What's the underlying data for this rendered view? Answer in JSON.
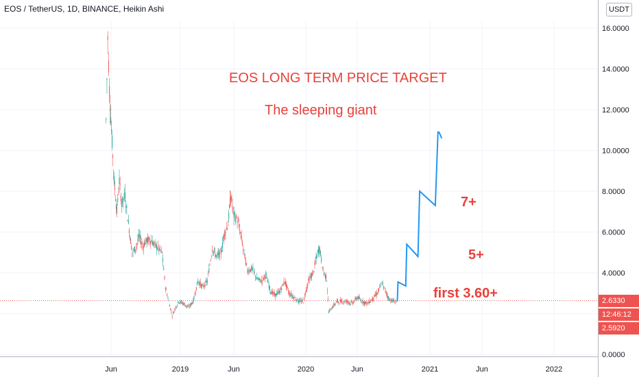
{
  "header": {
    "symbol_title": "EOS / TetherUS, 1D, BINANCE, Heikin Ashi",
    "currency_button": "USDT"
  },
  "annotations": {
    "title": "EOS LONG TERM PRICE TARGET",
    "subtitle": "The sleeping giant",
    "target_7": "7+",
    "target_5": "5+",
    "target_first": "first 3.60+"
  },
  "price_tags": {
    "last_price": "2.6330",
    "countdown": "12:46:12",
    "low_price": "2.5920"
  },
  "colors": {
    "annotation": "#e9413a",
    "projection": "#2196f3",
    "candle_up": "#26a69a",
    "candle_down": "#ef5350",
    "price_tag": "#ef5350",
    "grid": "#f0f3fa"
  },
  "chart_data": {
    "type": "line",
    "style": "Heikin Ashi candles",
    "x_axis": {
      "tick_labels": [
        "Jun",
        "2019",
        "Jun",
        "2020",
        "Jun",
        "2021",
        "Jun",
        "2022"
      ]
    },
    "y_axis": {
      "tick_labels": [
        "0.0000",
        "2.0000",
        "4.0000",
        "6.0000",
        "8.0000",
        "10.0000",
        "12.0000",
        "14.0000",
        "16.0000"
      ],
      "range": [
        0,
        16.9
      ],
      "position": "right"
    },
    "grid": true,
    "reference_line": {
      "value": 2.633
    },
    "series": [
      {
        "role": "price",
        "points": [
          [
            "2018-05-27",
            11.5
          ],
          [
            "2018-06-01",
            15.5
          ],
          [
            "2018-06-06",
            13.0
          ],
          [
            "2018-06-12",
            11.0
          ],
          [
            "2018-06-20",
            8.5
          ],
          [
            "2018-06-28",
            7.0
          ],
          [
            "2018-07-05",
            8.5
          ],
          [
            "2018-07-12",
            7.4
          ],
          [
            "2018-07-22",
            7.8
          ],
          [
            "2018-08-01",
            6.4
          ],
          [
            "2018-08-12",
            5.0
          ],
          [
            "2018-08-22",
            5.2
          ],
          [
            "2018-09-02",
            5.8
          ],
          [
            "2018-09-12",
            5.3
          ],
          [
            "2018-09-24",
            5.6
          ],
          [
            "2018-10-05",
            5.6
          ],
          [
            "2018-10-16",
            5.4
          ],
          [
            "2018-10-28",
            5.2
          ],
          [
            "2018-11-08",
            5.0
          ],
          [
            "2018-11-18",
            3.3
          ],
          [
            "2018-11-28",
            2.6
          ],
          [
            "2018-12-08",
            1.9
          ],
          [
            "2018-12-18",
            2.3
          ],
          [
            "2018-12-28",
            2.6
          ],
          [
            "2019-01-10",
            2.5
          ],
          [
            "2019-01-25",
            2.3
          ],
          [
            "2019-02-08",
            2.6
          ],
          [
            "2019-02-22",
            3.6
          ],
          [
            "2019-03-08",
            3.3
          ],
          [
            "2019-03-22",
            3.6
          ],
          [
            "2019-04-05",
            5.2
          ],
          [
            "2019-04-18",
            4.8
          ],
          [
            "2019-05-01",
            5.0
          ],
          [
            "2019-05-12",
            6.0
          ],
          [
            "2019-05-22",
            6.4
          ],
          [
            "2019-05-30",
            7.8
          ],
          [
            "2019-06-08",
            6.8
          ],
          [
            "2019-06-18",
            6.6
          ],
          [
            "2019-06-28",
            5.9
          ],
          [
            "2019-07-08",
            5.0
          ],
          [
            "2019-07-18",
            4.1
          ],
          [
            "2019-08-01",
            4.2
          ],
          [
            "2019-08-15",
            3.7
          ],
          [
            "2019-08-28",
            3.6
          ],
          [
            "2019-09-10",
            3.9
          ],
          [
            "2019-09-24",
            3.1
          ],
          [
            "2019-10-08",
            2.9
          ],
          [
            "2019-10-22",
            3.1
          ],
          [
            "2019-11-05",
            3.6
          ],
          [
            "2019-11-18",
            3.0
          ],
          [
            "2019-12-02",
            2.8
          ],
          [
            "2019-12-16",
            2.6
          ],
          [
            "2019-12-30",
            2.6
          ],
          [
            "2020-01-14",
            3.6
          ],
          [
            "2020-01-28",
            4.0
          ],
          [
            "2020-02-10",
            5.0
          ],
          [
            "2020-02-16",
            5.2
          ],
          [
            "2020-02-26",
            4.1
          ],
          [
            "2020-03-08",
            3.7
          ],
          [
            "2020-03-14",
            2.1
          ],
          [
            "2020-03-24",
            2.3
          ],
          [
            "2020-04-07",
            2.6
          ],
          [
            "2020-04-22",
            2.6
          ],
          [
            "2020-05-07",
            2.6
          ],
          [
            "2020-05-22",
            2.5
          ],
          [
            "2020-06-06",
            2.8
          ],
          [
            "2020-06-20",
            2.6
          ],
          [
            "2020-07-06",
            2.5
          ],
          [
            "2020-07-20",
            2.7
          ],
          [
            "2020-08-04",
            3.0
          ],
          [
            "2020-08-18",
            3.5
          ],
          [
            "2020-08-28",
            3.1
          ],
          [
            "2020-09-08",
            2.7
          ],
          [
            "2020-09-22",
            2.6
          ],
          [
            "2020-10-02",
            2.6
          ]
        ]
      },
      {
        "role": "projection",
        "points": [
          [
            "2020-10-02",
            2.6
          ],
          [
            "2020-10-04",
            3.55
          ],
          [
            "2020-10-27",
            3.35
          ],
          [
            "2020-10-30",
            5.4
          ],
          [
            "2020-12-02",
            4.8
          ],
          [
            "2020-12-07",
            8.0
          ],
          [
            "2021-01-22",
            7.3
          ],
          [
            "2021-01-30",
            10.9
          ],
          [
            "2021-02-02",
            10.9
          ],
          [
            "2021-02-10",
            10.6
          ]
        ]
      }
    ]
  }
}
